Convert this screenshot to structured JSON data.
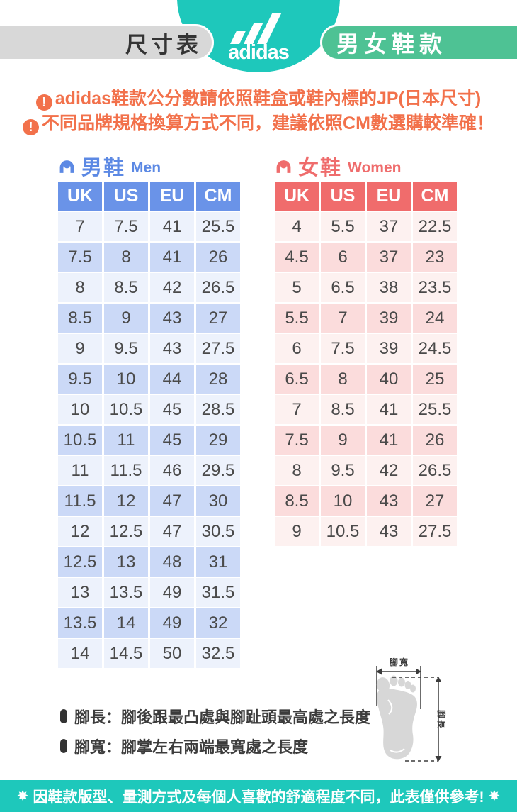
{
  "header": {
    "size_chart_label": "尺寸表",
    "brand_wordmark": "adidas",
    "category_label": "男女鞋款"
  },
  "notices": [
    {
      "icon": "!",
      "text": "adidas鞋款公分數請依照鞋盒或鞋內標的JP(日本尺寸)"
    },
    {
      "icon": "!",
      "text": "不同品牌規格換算方式不同，建議依照CM數選購較準確！"
    }
  ],
  "men": {
    "title_zh": "男鞋",
    "title_en": "Men",
    "columns": [
      "UK",
      "US",
      "EU",
      "CM"
    ],
    "rows": [
      [
        "7",
        "7.5",
        "41",
        "25.5"
      ],
      [
        "7.5",
        "8",
        "41",
        "26"
      ],
      [
        "8",
        "8.5",
        "42",
        "26.5"
      ],
      [
        "8.5",
        "9",
        "43",
        "27"
      ],
      [
        "9",
        "9.5",
        "43",
        "27.5"
      ],
      [
        "9.5",
        "10",
        "44",
        "28"
      ],
      [
        "10",
        "10.5",
        "45",
        "28.5"
      ],
      [
        "10.5",
        "11",
        "45",
        "29"
      ],
      [
        "11",
        "11.5",
        "46",
        "29.5"
      ],
      [
        "11.5",
        "12",
        "47",
        "30"
      ],
      [
        "12",
        "12.5",
        "47",
        "30.5"
      ],
      [
        "12.5",
        "13",
        "48",
        "31"
      ],
      [
        "13",
        "13.5",
        "49",
        "31.5"
      ],
      [
        "13.5",
        "14",
        "49",
        "32"
      ],
      [
        "14",
        "14.5",
        "50",
        "32.5"
      ]
    ]
  },
  "women": {
    "title_zh": "女鞋",
    "title_en": "Women",
    "columns": [
      "UK",
      "US",
      "EU",
      "CM"
    ],
    "rows": [
      [
        "4",
        "5.5",
        "37",
        "22.5"
      ],
      [
        "4.5",
        "6",
        "37",
        "23"
      ],
      [
        "5",
        "6.5",
        "38",
        "23.5"
      ],
      [
        "5.5",
        "7",
        "39",
        "24"
      ],
      [
        "6",
        "7.5",
        "39",
        "24.5"
      ],
      [
        "6.5",
        "8",
        "40",
        "25"
      ],
      [
        "7",
        "8.5",
        "41",
        "25.5"
      ],
      [
        "7.5",
        "9",
        "41",
        "26"
      ],
      [
        "8",
        "9.5",
        "42",
        "26.5"
      ],
      [
        "8.5",
        "10",
        "43",
        "27"
      ],
      [
        "9",
        "10.5",
        "43",
        "27.5"
      ]
    ]
  },
  "measure_notes": [
    {
      "text": "腳長：腳後跟最凸處與腳趾頭最高處之長度"
    },
    {
      "text": "腳寬：腳掌左右兩端最寬處之長度"
    }
  ],
  "diagram": {
    "width_label": "腳寬",
    "length_label": "腳長"
  },
  "footer": {
    "star": "✸",
    "text": "因鞋款版型、量測方式及每個人喜歡的舒適程度不同，此表僅供參考!"
  },
  "colors": {
    "teal": "#1EC8BB",
    "green": "#4EC294",
    "gray_pill": "#D8D8D8",
    "orange": "#F2714B",
    "blue_h": "#6A93E8",
    "blue_light": "#EDF2FC",
    "blue_alt": "#CBD9F7",
    "blue_text": "#5C89E4",
    "coral_h": "#F06C6C",
    "pink_light": "#FDF1F0",
    "pink_alt": "#FBDCDC",
    "coral_text": "#EF6C6C"
  }
}
